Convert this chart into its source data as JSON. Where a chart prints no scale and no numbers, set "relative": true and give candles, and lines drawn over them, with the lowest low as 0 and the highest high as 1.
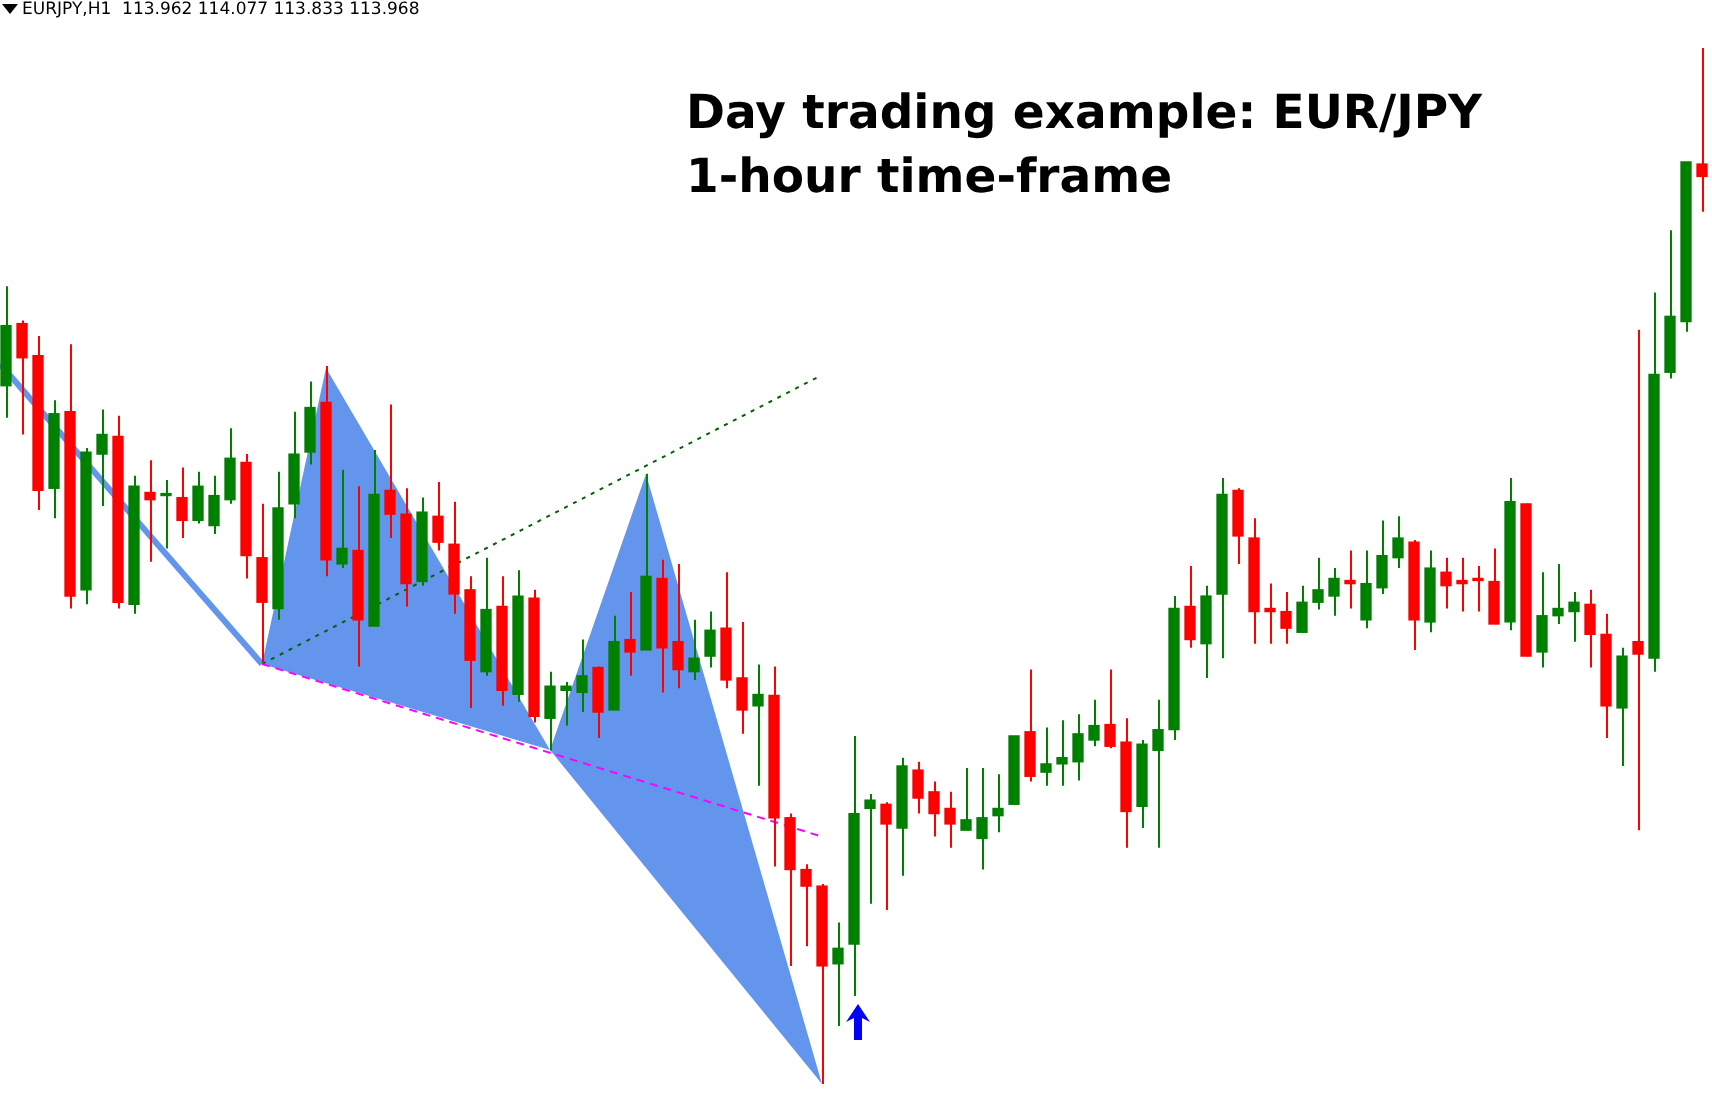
{
  "chart_data": {
    "type": "candlestick",
    "title": "Day trading example: EUR/JPY",
    "subtitle": "1-hour time-frame",
    "annotations": [
      "EURJPY,H1  113.962 114.077 113.833 113.968"
    ],
    "relative": true,
    "categories": [
      null,
      null,
      null,
      null,
      null,
      null,
      null,
      null,
      null,
      null,
      null,
      null,
      null,
      null,
      null,
      null,
      null,
      null,
      null,
      null,
      null,
      null,
      null,
      null,
      null,
      null,
      null,
      null,
      null,
      null,
      null,
      null,
      null,
      null,
      null,
      null,
      null,
      null,
      null,
      null,
      null,
      null,
      null,
      null,
      null,
      null,
      null,
      null,
      null,
      null,
      null,
      null,
      null,
      null,
      null,
      null,
      null,
      null,
      null,
      null,
      null,
      null,
      null,
      null,
      null,
      null,
      null,
      null,
      null,
      null,
      null,
      null,
      null,
      null,
      null,
      null,
      null,
      null,
      null,
      null,
      null,
      null,
      null,
      null,
      null,
      null,
      null,
      null,
      null,
      null,
      null,
      null,
      null,
      null,
      null,
      null,
      null,
      null,
      null,
      null,
      null,
      null,
      null,
      null,
      null,
      null,
      null
    ],
    "ohlc": [
      [
        0.674,
        0.77,
        0.643,
        0.732
      ],
      [
        0.734,
        0.737,
        0.627,
        0.701
      ],
      [
        0.703,
        0.722,
        0.554,
        0.573
      ],
      [
        0.575,
        0.66,
        0.546,
        0.647
      ],
      [
        0.649,
        0.714,
        0.459,
        0.471
      ],
      [
        0.477,
        0.614,
        0.463,
        0.61
      ],
      [
        0.608,
        0.651,
        0.558,
        0.627
      ],
      [
        0.625,
        0.645,
        0.459,
        0.465
      ],
      [
        0.463,
        0.587,
        0.454,
        0.577
      ],
      [
        0.571,
        0.602,
        0.504,
        0.564
      ],
      [
        0.568,
        0.583,
        0.517,
        0.569
      ],
      [
        0.566,
        0.595,
        0.527,
        0.544
      ],
      [
        0.544,
        0.591,
        0.541,
        0.577
      ],
      [
        0.539,
        0.587,
        0.531,
        0.568
      ],
      [
        0.564,
        0.633,
        0.56,
        0.604
      ],
      [
        0.6,
        0.608,
        0.488,
        0.51
      ],
      [
        0.508,
        0.56,
        0.407,
        0.465
      ],
      [
        0.459,
        0.591,
        0.448,
        0.556
      ],
      [
        0.56,
        0.649,
        0.546,
        0.608
      ],
      [
        0.61,
        0.678,
        0.598,
        0.653
      ],
      [
        0.658,
        0.693,
        0.49,
        0.506
      ],
      [
        0.502,
        0.593,
        0.498,
        0.517
      ],
      [
        0.515,
        0.577,
        0.403,
        0.448
      ],
      [
        0.442,
        0.612,
        0.442,
        0.569
      ],
      [
        0.573,
        0.656,
        0.527,
        0.55
      ],
      [
        0.55,
        0.575,
        0.461,
        0.483
      ],
      [
        0.485,
        0.566,
        0.481,
        0.552
      ],
      [
        0.548,
        0.581,
        0.515,
        0.523
      ],
      [
        0.521,
        0.562,
        0.454,
        0.473
      ],
      [
        0.477,
        0.49,
        0.363,
        0.409
      ],
      [
        0.398,
        0.508,
        0.394,
        0.458
      ],
      [
        0.461,
        0.49,
        0.365,
        0.38
      ],
      [
        0.376,
        0.496,
        0.369,
        0.471
      ],
      [
        0.469,
        0.477,
        0.349,
        0.355
      ],
      [
        0.353,
        0.398,
        0.322,
        0.384
      ],
      [
        0.38,
        0.388,
        0.346,
        0.384
      ],
      [
        0.378,
        0.429,
        0.359,
        0.394
      ],
      [
        0.402,
        0.403,
        0.334,
        0.359
      ],
      [
        0.361,
        0.452,
        0.361,
        0.427
      ],
      [
        0.429,
        0.475,
        0.394,
        0.417
      ],
      [
        0.419,
        0.589,
        0.419,
        0.49
      ],
      [
        0.488,
        0.506,
        0.378,
        0.421
      ],
      [
        0.427,
        0.502,
        0.382,
        0.4
      ],
      [
        0.398,
        0.448,
        0.39,
        0.411
      ],
      [
        0.413,
        0.456,
        0.402,
        0.438
      ],
      [
        0.44,
        0.494,
        0.382,
        0.39
      ],
      [
        0.392,
        0.446,
        0.338,
        0.361
      ],
      [
        0.365,
        0.405,
        0.288,
        0.376
      ],
      [
        0.375,
        0.403,
        0.21,
        0.257
      ],
      [
        0.257,
        0.261,
        0.114,
        0.207
      ],
      [
        0.207,
        0.212,
        0.133,
        0.191
      ],
      [
        0.191,
        0.193,
        0,
        0.114
      ],
      [
        0.116,
        0.156,
        0.056,
        0.131
      ],
      [
        0.135,
        0.336,
        0.085,
        0.261
      ],
      [
        0.266,
        0.28,
        0.174,
        0.274
      ],
      [
        0.27,
        0.272,
        0.168,
        0.251
      ],
      [
        0.247,
        0.315,
        0.201,
        0.307
      ],
      [
        0.303,
        0.311,
        0.261,
        0.276
      ],
      [
        0.282,
        0.292,
        0.239,
        0.261
      ],
      [
        0.266,
        0.282,
        0.228,
        0.251
      ],
      [
        0.245,
        0.305,
        0.245,
        0.255
      ],
      [
        0.237,
        0.305,
        0.207,
        0.257
      ],
      [
        0.259,
        0.299,
        0.243,
        0.266
      ],
      [
        0.27,
        0.336,
        0.27,
        0.336
      ],
      [
        0.34,
        0.4,
        0.292,
        0.297
      ],
      [
        0.301,
        0.344,
        0.288,
        0.309
      ],
      [
        0.309,
        0.351,
        0.288,
        0.315
      ],
      [
        0.311,
        0.357,
        0.293,
        0.338
      ],
      [
        0.332,
        0.371,
        0.326,
        0.346
      ],
      [
        0.347,
        0.4,
        0.324,
        0.326
      ],
      [
        0.33,
        0.353,
        0.228,
        0.263
      ],
      [
        0.268,
        0.332,
        0.247,
        0.328
      ],
      [
        0.322,
        0.371,
        0.228,
        0.342
      ],
      [
        0.342,
        0.471,
        0.332,
        0.459
      ],
      [
        0.461,
        0.5,
        0.421,
        0.429
      ],
      [
        0.425,
        0.481,
        0.392,
        0.471
      ],
      [
        0.473,
        0.585,
        0.411,
        0.569
      ],
      [
        0.573,
        0.575,
        0.502,
        0.529
      ],
      [
        0.527,
        0.546,
        0.425,
        0.456
      ],
      [
        0.459,
        0.483,
        0.425,
        0.456
      ],
      [
        0.456,
        0.475,
        0.425,
        0.44
      ],
      [
        0.436,
        0.481,
        0.436,
        0.465
      ],
      [
        0.465,
        0.508,
        0.458,
        0.477
      ],
      [
        0.471,
        0.498,
        0.452,
        0.488
      ],
      [
        0.486,
        0.515,
        0.459,
        0.483
      ],
      [
        0.448,
        0.515,
        0.44,
        0.483
      ],
      [
        0.479,
        0.544,
        0.473,
        0.51
      ],
      [
        0.508,
        0.548,
        0.498,
        0.527
      ],
      [
        0.523,
        0.525,
        0.419,
        0.448
      ],
      [
        0.446,
        0.515,
        0.436,
        0.498
      ],
      [
        0.494,
        0.508,
        0.459,
        0.481
      ],
      [
        0.486,
        0.508,
        0.456,
        0.483
      ],
      [
        0.488,
        0.5,
        0.456,
        0.486
      ],
      [
        0.485,
        0.517,
        0.444,
        0.444
      ],
      [
        0.446,
        0.585,
        0.438,
        0.562
      ],
      [
        0.56,
        0.56,
        0.413,
        0.413
      ],
      [
        0.417,
        0.494,
        0.402,
        0.452
      ],
      [
        0.452,
        0.502,
        0.444,
        0.459
      ],
      [
        0.456,
        0.475,
        0.427,
        0.465
      ],
      [
        0.463,
        0.477,
        0.402,
        0.434
      ],
      [
        0.434,
        0.454,
        0.334,
        0.365
      ],
      [
        0.363,
        0.421,
        0.307,
        0.413
      ],
      [
        0.427,
        0.728,
        0.245,
        0.415
      ],
      [
        0.411,
        0.764,
        0.398,
        0.685
      ],
      [
        0.687,
        0.824,
        0.681,
        0.741
      ],
      [
        0.736,
        0.89,
        0.726,
        0.89
      ],
      [
        0.888,
        1,
        0.842,
        0.876
      ]
    ],
    "colors": [
      "#008000",
      "#ff0000",
      "#ff0000",
      "#008000",
      "#ff0000",
      "#008000",
      "#008000",
      "#ff0000",
      "#008000",
      "#ff0000",
      "#008000",
      "#ff0000",
      "#008000",
      "#008000",
      "#008000",
      "#ff0000",
      "#ff0000",
      "#008000",
      "#008000",
      "#008000",
      "#ff0000",
      "#008000",
      "#ff0000",
      "#008000",
      "#ff0000",
      "#ff0000",
      "#008000",
      "#ff0000",
      "#ff0000",
      "#ff0000",
      "#008000",
      "#ff0000",
      "#008000",
      "#ff0000",
      "#008000",
      "#008000",
      "#008000",
      "#ff0000",
      "#008000",
      "#ff0000",
      "#008000",
      "#ff0000",
      "#ff0000",
      "#008000",
      "#008000",
      "#ff0000",
      "#ff0000",
      "#008000",
      "#ff0000",
      "#ff0000",
      "#ff0000",
      "#ff0000",
      "#008000",
      "#008000",
      "#008000",
      "#ff0000",
      "#008000",
      "#ff0000",
      "#ff0000",
      "#ff0000",
      "#008000",
      "#008000",
      "#008000",
      "#008000",
      "#ff0000",
      "#008000",
      "#008000",
      "#008000",
      "#008000",
      "#ff0000",
      "#ff0000",
      "#008000",
      "#008000",
      "#008000",
      "#ff0000",
      "#008000",
      "#008000",
      "#ff0000",
      "#ff0000",
      "#ff0000",
      "#ff0000",
      "#008000",
      "#008000",
      "#008000",
      "#ff0000",
      "#008000",
      "#008000",
      "#008000",
      "#ff0000",
      "#008000",
      "#ff0000",
      "#ff0000",
      "#ff0000",
      "#ff0000",
      "#008000",
      "#ff0000",
      "#008000",
      "#008000",
      "#008000",
      "#ff0000",
      "#ff0000",
      "#008000",
      "#ff0000",
      "#008000",
      "#008000",
      "#008000",
      "#ff0000"
    ]
  }
}
